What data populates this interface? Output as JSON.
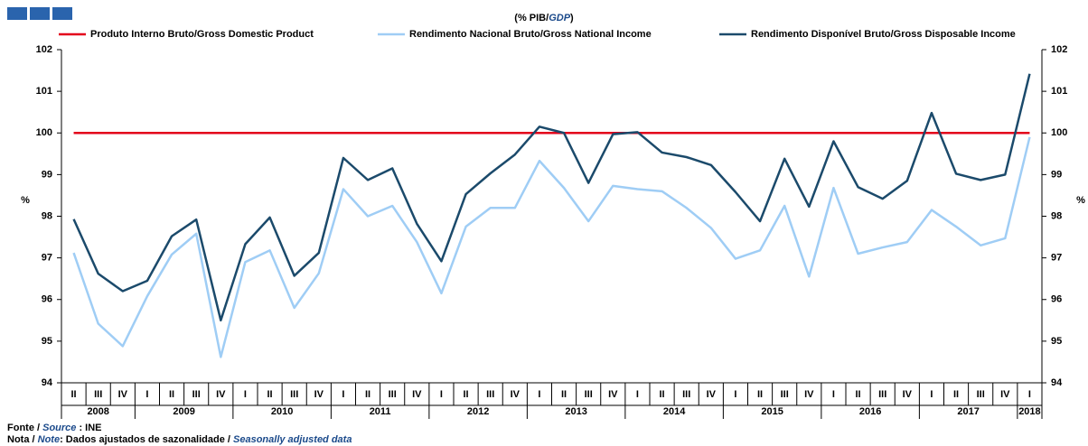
{
  "chart_data": {
    "type": "line",
    "title": [
      "(% PIB/",
      "GDP",
      ")"
    ],
    "y_label": "%",
    "y2_label": "%",
    "categories": [
      "II",
      "III",
      "IV",
      "I",
      "II",
      "III",
      "IV",
      "I",
      "II",
      "III",
      "IV",
      "I",
      "II",
      "III",
      "IV",
      "I",
      "II",
      "III",
      "IV",
      "I",
      "II",
      "III",
      "IV",
      "I",
      "II",
      "III",
      "IV",
      "I",
      "II",
      "III",
      "IV",
      "I",
      "II",
      "III",
      "IV",
      "I",
      "II",
      "III",
      "IV",
      "I"
    ],
    "years": [
      "2008",
      "2009",
      "2010",
      "2011",
      "2012",
      "2013",
      "2014",
      "2015",
      "2016",
      "2017",
      "2018"
    ],
    "series": [
      {
        "name": "Produto Interno Bruto/Gross Domestic Product",
        "color": "#e3001b",
        "values": [
          100,
          100,
          100,
          100,
          100,
          100,
          100,
          100,
          100,
          100,
          100,
          100,
          100,
          100,
          100,
          100,
          100,
          100,
          100,
          100,
          100,
          100,
          100,
          100,
          100,
          100,
          100,
          100,
          100,
          100,
          100,
          100,
          100,
          100,
          100,
          100,
          100,
          100,
          100,
          100
        ]
      },
      {
        "name": "Rendimento Nacional Bruto/Gross National Income",
        "color": "#9fcdf5",
        "values": [
          97.12,
          95.42,
          94.88,
          96.08,
          97.08,
          97.58,
          94.62,
          96.9,
          97.18,
          95.8,
          96.63,
          98.65,
          98.0,
          98.25,
          97.38,
          96.15,
          97.75,
          98.2,
          98.2,
          99.33,
          98.68,
          97.88,
          98.73,
          98.65,
          98.6,
          98.2,
          97.72,
          96.98,
          97.18,
          98.25,
          96.55,
          98.68,
          97.1,
          97.25,
          97.38,
          98.15,
          97.75,
          97.3,
          97.47,
          99.9
        ]
      },
      {
        "name": "Rendimento Disponível Bruto/Gross Disposable Income",
        "color": "#1b4a6b",
        "values": [
          97.93,
          96.62,
          96.2,
          96.45,
          97.52,
          97.92,
          95.5,
          97.33,
          97.97,
          96.57,
          97.12,
          99.4,
          98.87,
          99.15,
          97.82,
          96.92,
          98.53,
          99.03,
          99.48,
          100.15,
          100.0,
          98.8,
          99.97,
          100.02,
          99.53,
          99.42,
          99.23,
          98.58,
          97.88,
          99.38,
          98.23,
          99.8,
          98.7,
          98.42,
          98.85,
          100.48,
          99.02,
          98.87,
          99.0,
          101.42
        ]
      }
    ],
    "ylim": [
      94,
      102
    ],
    "yticks": [
      94,
      95,
      96,
      97,
      98,
      99,
      100,
      101,
      102
    ],
    "y2lim": [
      94,
      102
    ],
    "y2ticks": [
      94,
      95,
      96,
      97,
      98,
      99,
      100,
      101,
      102
    ],
    "grid": false,
    "source": [
      "Fonte / ",
      "Source",
      " :  INE"
    ],
    "note": [
      "Nota / ",
      "Note",
      ": Dados ajustados de sazonalidade / ",
      "Seasonally adjusted data"
    ]
  }
}
